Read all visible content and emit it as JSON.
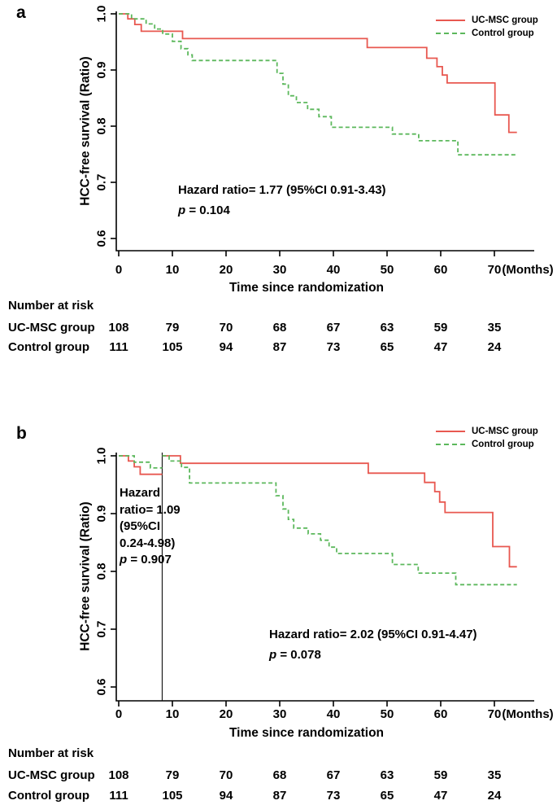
{
  "figure": {
    "panel_a_label": "a",
    "panel_b_label": "b"
  },
  "colors": {
    "ucmsc_red": "#e85850",
    "control_green": "#5cb85c",
    "axis_black": "#000000"
  },
  "chart_data": [
    {
      "type": "line",
      "subtype": "kaplan_meier_step",
      "panel": "a",
      "xlabel": "Time since randomization",
      "ylabel": "HCC-free survival (Ratio)",
      "x_unit_label": "(Months)",
      "xticks": [
        0,
        10,
        20,
        30,
        40,
        50,
        60,
        70
      ],
      "yticks": [
        1.0,
        0.9,
        0.8,
        0.7,
        0.6
      ],
      "xlim": [
        0,
        77
      ],
      "ylim": [
        0.58,
        1.0
      ],
      "grid": false,
      "legend_position": "top-right",
      "annotation": {
        "line1": "Hazard ratio= 1.77 (95%CI 0.91-3.43)",
        "p_symbol": "p",
        "p_rest": " = 0.104"
      },
      "series": [
        {
          "name": "UC-MSC group",
          "color": "#e85850",
          "line_style": "solid",
          "segments": [
            [
              [
                0,
                1.0
              ],
              [
                1.7,
                0.991
              ],
              [
                3,
                0.981
              ],
              [
                4.2,
                0.969
              ],
              [
                11.9,
                0.956
              ],
              [
                46.3,
                0.94
              ],
              [
                57.4,
                0.921
              ],
              [
                59.3,
                0.906
              ],
              [
                60.3,
                0.891
              ],
              [
                61.2,
                0.877
              ],
              [
                70.1,
                0.82
              ],
              [
                72.7,
                0.789
              ],
              [
                74.2,
                0.789
              ]
            ]
          ]
        },
        {
          "name": "Control group",
          "color": "#5cb85c",
          "line_style": "dashed",
          "segments": [
            [
              [
                0,
                1.0
              ],
              [
                2.4,
                0.991
              ],
              [
                5.1,
                0.982
              ],
              [
                6.7,
                0.973
              ],
              [
                8.2,
                0.964
              ],
              [
                10,
                0.951
              ],
              [
                11.6,
                0.938
              ],
              [
                12.9,
                0.927
              ],
              [
                13.7,
                0.917
              ],
              [
                29.5,
                0.894
              ],
              [
                30.6,
                0.875
              ],
              [
                31.6,
                0.854
              ],
              [
                33.1,
                0.842
              ],
              [
                35.2,
                0.83
              ],
              [
                37.3,
                0.817
              ],
              [
                39.6,
                0.798
              ],
              [
                51,
                0.786
              ],
              [
                55.9,
                0.774
              ],
              [
                63.2,
                0.749
              ],
              [
                74.2,
                0.749
              ]
            ]
          ]
        }
      ]
    },
    {
      "type": "line",
      "subtype": "kaplan_meier_step_landmark",
      "panel": "b",
      "xlabel": "Time since randomization",
      "ylabel": "HCC-free survival (Ratio)",
      "x_unit_label": "(Months)",
      "xticks": [
        0,
        10,
        20,
        30,
        40,
        50,
        60,
        70
      ],
      "yticks": [
        1.0,
        0.9,
        0.8,
        0.7,
        0.6
      ],
      "xlim": [
        0,
        77
      ],
      "ylim": [
        0.58,
        1.0
      ],
      "grid": false,
      "legend_position": "top-right",
      "landmark_month": 8.1,
      "annotation_landmark": {
        "lines": [
          "Hazard",
          "ratio= 1.09",
          "(95%CI",
          "0.24-4.98)"
        ],
        "p_symbol": "p",
        "p_rest": " = 0.907"
      },
      "annotation": {
        "line1": "Hazard ratio= 2.02 (95%CI 0.91-4.47)",
        "p_symbol": "p",
        "p_rest": " = 0.078"
      },
      "series": [
        {
          "name": "UC-MSC group",
          "color": "#e85850",
          "line_style": "solid",
          "segments": [
            [
              [
                0,
                1.0
              ],
              [
                1.8,
                0.991
              ],
              [
                2.9,
                0.981
              ],
              [
                4,
                0.968
              ],
              [
                8.1,
                0.968
              ]
            ],
            [
              [
                8.1,
                1.0
              ],
              [
                11.5,
                0.987
              ],
              [
                46.5,
                0.97
              ],
              [
                57,
                0.954
              ],
              [
                58.9,
                0.938
              ],
              [
                59.8,
                0.92
              ],
              [
                60.8,
                0.902
              ],
              [
                69.7,
                0.843
              ],
              [
                72.8,
                0.808
              ],
              [
                74.2,
                0.808
              ]
            ]
          ]
        },
        {
          "name": "Control group",
          "color": "#5cb85c",
          "line_style": "dashed",
          "segments": [
            [
              [
                0,
                1.0
              ],
              [
                2.9,
                0.989
              ],
              [
                5.9,
                0.979
              ],
              [
                8.1,
                0.979
              ]
            ],
            [
              [
                8.1,
                1.0
              ],
              [
                9.4,
                0.991
              ],
              [
                11.7,
                0.98
              ],
              [
                13.2,
                0.953
              ],
              [
                29.3,
                0.931
              ],
              [
                30.6,
                0.908
              ],
              [
                31.6,
                0.89
              ],
              [
                32.6,
                0.875
              ],
              [
                35.3,
                0.865
              ],
              [
                37.6,
                0.854
              ],
              [
                39.2,
                0.842
              ],
              [
                40.6,
                0.831
              ],
              [
                51,
                0.812
              ],
              [
                55.8,
                0.797
              ],
              [
                62.8,
                0.777
              ],
              [
                74.2,
                0.777
              ]
            ]
          ]
        }
      ]
    }
  ],
  "risk_table": {
    "header": "Number at risk",
    "time_points": [
      0,
      10,
      20,
      30,
      40,
      50,
      60,
      70
    ],
    "rows": [
      {
        "label": "UC-MSC group",
        "counts": [
          "108",
          "79",
          "70",
          "68",
          "67",
          "63",
          "59",
          "35"
        ]
      },
      {
        "label": "Control group",
        "counts": [
          "111",
          "105",
          "94",
          "87",
          "73",
          "65",
          "47",
          "24"
        ]
      }
    ]
  }
}
